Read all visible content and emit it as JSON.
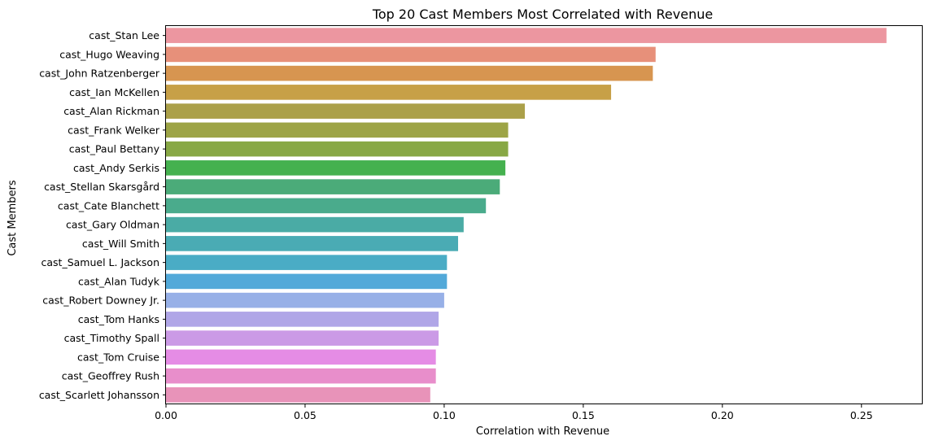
{
  "chart_data": {
    "type": "bar",
    "orientation": "horizontal",
    "title": "Top 20 Cast Members Most Correlated with Revenue",
    "xlabel": "Correlation with Revenue",
    "ylabel": "Cast Members",
    "xlim": [
      0,
      0.272
    ],
    "xticks": [
      0.0,
      0.05,
      0.1,
      0.15,
      0.2,
      0.25
    ],
    "xtick_labels": [
      "0.00",
      "0.05",
      "0.10",
      "0.15",
      "0.20",
      "0.25"
    ],
    "grid": false,
    "legend": "none",
    "categories": [
      "cast_Stan Lee",
      "cast_Hugo Weaving",
      "cast_John Ratzenberger",
      "cast_Ian McKellen",
      "cast_Alan Rickman",
      "cast_Frank Welker",
      "cast_Paul Bettany",
      "cast_Andy Serkis",
      "cast_Stellan Skarsgård",
      "cast_Cate Blanchett",
      "cast_Gary Oldman",
      "cast_Will Smith",
      "cast_Samuel L. Jackson",
      "cast_Alan Tudyk",
      "cast_Robert Downey Jr.",
      "cast_Tom Hanks",
      "cast_Timothy Spall",
      "cast_Tom Cruise",
      "cast_Geoffrey Rush",
      "cast_Scarlett Johansson"
    ],
    "values": [
      0.259,
      0.176,
      0.175,
      0.16,
      0.129,
      0.123,
      0.123,
      0.122,
      0.12,
      0.115,
      0.107,
      0.105,
      0.101,
      0.101,
      0.1,
      0.098,
      0.098,
      0.097,
      0.097,
      0.095
    ],
    "colors": [
      "#ec96a0",
      "#e7907a",
      "#d79550",
      "#c7a047",
      "#aba049",
      "#9da446",
      "#88a845",
      "#45b14f",
      "#4bab79",
      "#4aab8c",
      "#4aaba5",
      "#4aabb4",
      "#4aacc5",
      "#52a9d9",
      "#97b0e7",
      "#b0a6e7",
      "#cb9ae6",
      "#e58ce5",
      "#e88ecb",
      "#e893b9"
    ]
  }
}
